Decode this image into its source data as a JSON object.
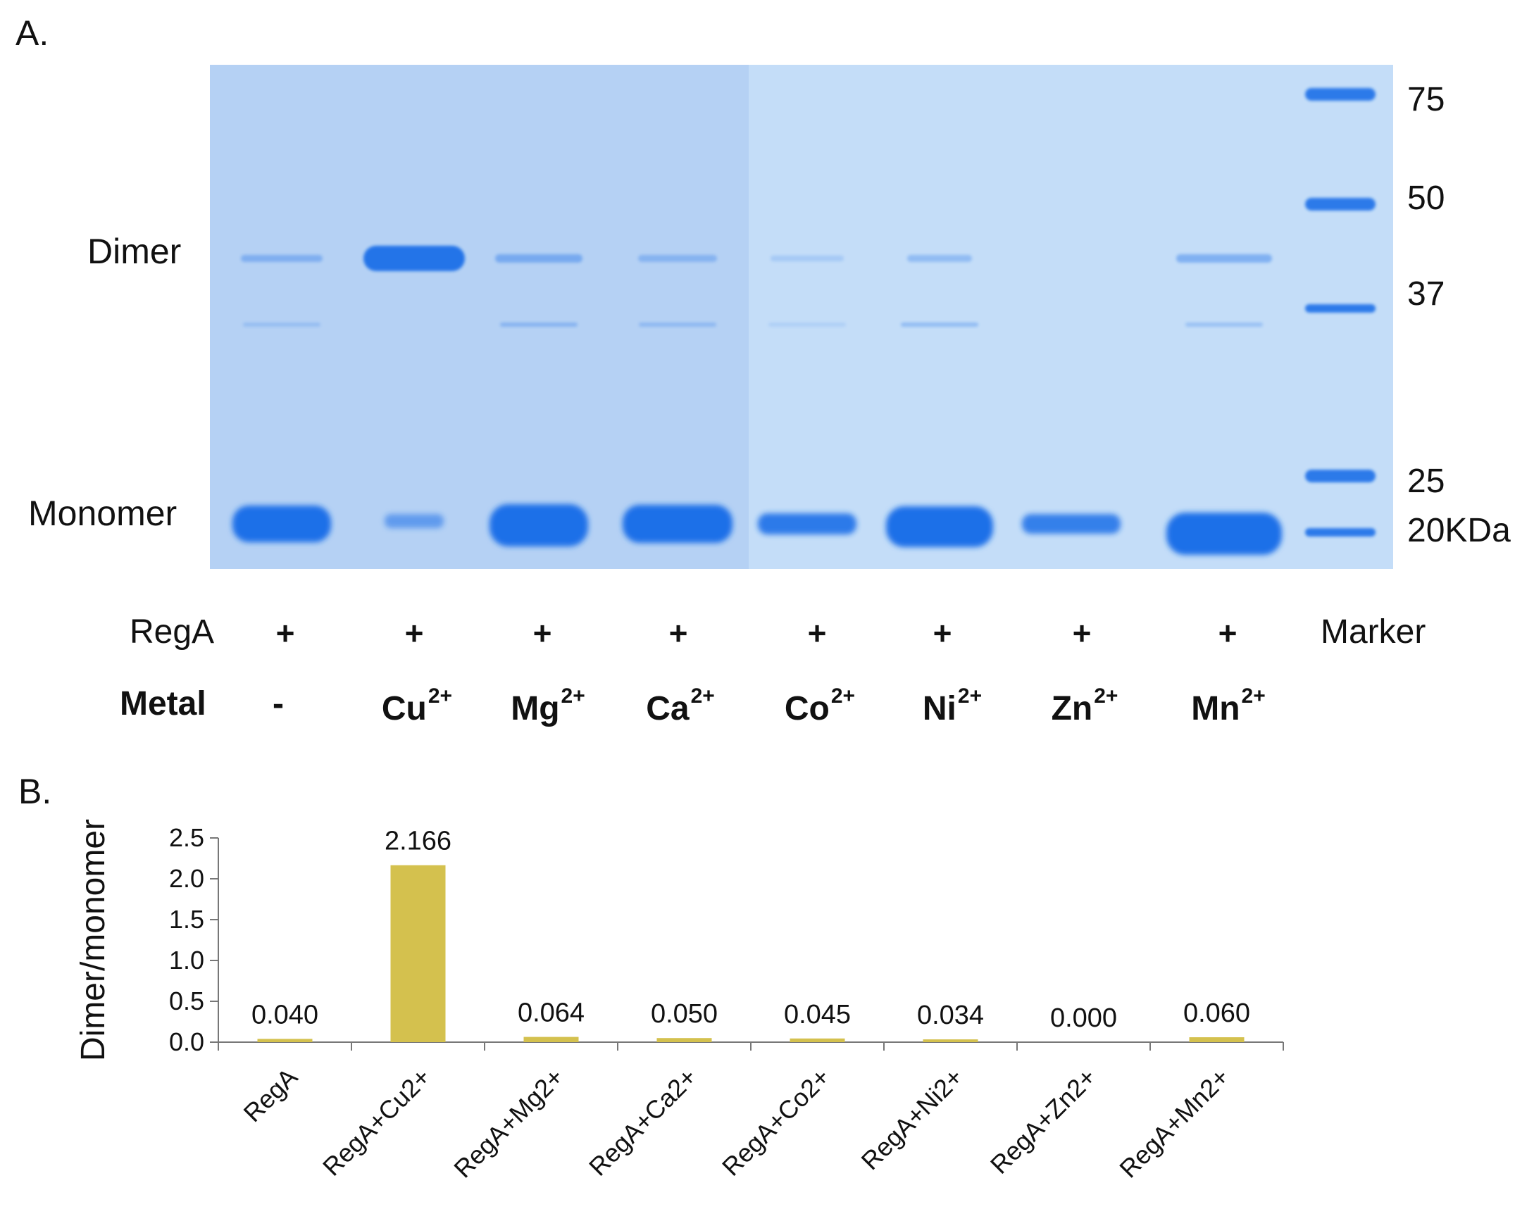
{
  "panelA": {
    "label": "A.",
    "dimer_label": "Dimer",
    "monomer_label": "Monomer",
    "marker_sizes": [
      "75",
      "50",
      "37",
      "25",
      "20KDa"
    ],
    "rows": {
      "rega_label": "RegA",
      "metal_label": "Metal",
      "marker_label": "Marker",
      "rega_signs": [
        "+",
        "+",
        "+",
        "+",
        "+",
        "+",
        "+",
        "+"
      ],
      "metals": [
        {
          "base": "-",
          "charge": ""
        },
        {
          "base": "Cu",
          "charge": "2+"
        },
        {
          "base": "Mg",
          "charge": "2+"
        },
        {
          "base": "Ca",
          "charge": "2+"
        },
        {
          "base": "Co",
          "charge": "2+"
        },
        {
          "base": "Ni",
          "charge": "2+"
        },
        {
          "base": "Zn",
          "charge": "2+"
        },
        {
          "base": "Mn",
          "charge": "2+"
        }
      ]
    },
    "colors": {
      "gel_left": "#b5d1f4",
      "gel_right": "#c4ddf8",
      "band": "#1a6fe8"
    }
  },
  "panelB": {
    "label": "B.",
    "chart_data": {
      "type": "bar",
      "categories": [
        "RegA",
        "RegA+Cu2+",
        "RegA+Mg2+",
        "RegA+Ca2+",
        "RegA+Co2+",
        "RegA+Ni2+",
        "RegA+Zn2+",
        "RegA+Mn2+"
      ],
      "values": [
        0.04,
        2.166,
        0.064,
        0.05,
        0.045,
        0.034,
        0.0,
        0.06
      ],
      "data_labels": [
        "0.040",
        "2.166",
        "0.064",
        "0.050",
        "0.045",
        "0.034",
        "0.000",
        "0.060"
      ],
      "ylabel": "Dimer/monomer",
      "yticks": [
        "0.0",
        "0.5",
        "1.0",
        "1.5",
        "2.0",
        "2.5"
      ],
      "ylim": [
        0,
        2.5
      ],
      "bar_color": "#d4c14e",
      "grid": false,
      "legend": "none"
    }
  }
}
